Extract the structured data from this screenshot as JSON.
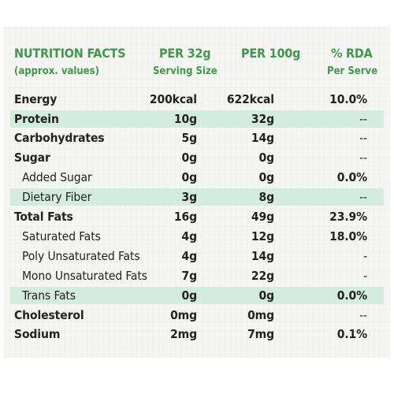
{
  "header": {
    "title": "NUTRITION FACTS",
    "subtitle": "(approx. values)",
    "col1_title": "PER 32g",
    "col1_sub": "Serving Size",
    "col2_title": "PER 100g",
    "col3_title": "% RDA",
    "col3_sub": "Per Serve"
  },
  "colors": {
    "header_green": "#3f9a4b",
    "band_green": "#d3ecdf",
    "text": "#222222"
  },
  "rows": [
    {
      "name": "Energy",
      "per_serving": "200kcal",
      "per_100g": "622kcal",
      "rda": "10.0%"
    },
    {
      "name": "Protein",
      "per_serving": "10g",
      "per_100g": "32g",
      "rda": "--"
    },
    {
      "name": "Carbohydrates",
      "per_serving": "5g",
      "per_100g": "14g",
      "rda": "--"
    },
    {
      "name": "Sugar",
      "per_serving": "0g",
      "per_100g": "0g",
      "rda": "--"
    },
    {
      "name": "Added Sugar",
      "per_serving": "0g",
      "per_100g": "0g",
      "rda": "0.0%"
    },
    {
      "name": "Dietary Fiber",
      "per_serving": "3g",
      "per_100g": "8g",
      "rda": "--"
    },
    {
      "name": "Total Fats",
      "per_serving": "16g",
      "per_100g": "49g",
      "rda": "23.9%"
    },
    {
      "name": "Saturated Fats",
      "per_serving": "4g",
      "per_100g": "12g",
      "rda": "18.0%"
    },
    {
      "name": "Poly Unsaturated Fats",
      "per_serving": "4g",
      "per_100g": "14g",
      "rda": "-"
    },
    {
      "name": "Mono Unsaturated Fats",
      "per_serving": "7g",
      "per_100g": "22g",
      "rda": "-"
    },
    {
      "name": "Trans Fats",
      "per_serving": "0g",
      "per_100g": "0g",
      "rda": "0.0%"
    },
    {
      "name": "Cholesterol",
      "per_serving": "0mg",
      "per_100g": "0mg",
      "rda": "--"
    },
    {
      "name": "Sodium",
      "per_serving": "2mg",
      "per_100g": "7mg",
      "rda": "0.1%"
    }
  ]
}
